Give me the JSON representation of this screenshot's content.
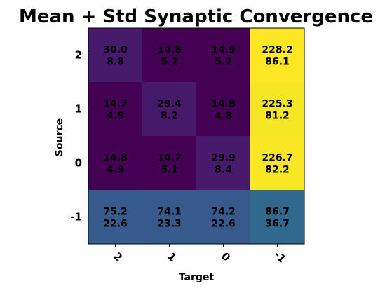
{
  "chart_data": {
    "type": "heatmap",
    "title": "Mean + Std Synaptic Convergence",
    "xlabel": "Target",
    "ylabel": "Source",
    "x_categories": [
      "2",
      "1",
      "0",
      "-1"
    ],
    "y_categories": [
      "2",
      "1",
      "0",
      "-1"
    ],
    "colormap": "viridis",
    "grid": false,
    "legend": "none",
    "cells": [
      {
        "source": "2",
        "target": "2",
        "mean": "30.0",
        "std": "8.8",
        "value": 30.0
      },
      {
        "source": "2",
        "target": "1",
        "mean": "14.8",
        "std": "5.2",
        "value": 14.8
      },
      {
        "source": "2",
        "target": "0",
        "mean": "14.9",
        "std": "5.2",
        "value": 14.9
      },
      {
        "source": "2",
        "target": "-1",
        "mean": "228.2",
        "std": "86.1",
        "value": 228.2
      },
      {
        "source": "1",
        "target": "2",
        "mean": "14.7",
        "std": "4.9",
        "value": 14.7
      },
      {
        "source": "1",
        "target": "1",
        "mean": "29.4",
        "std": "8.2",
        "value": 29.4
      },
      {
        "source": "1",
        "target": "0",
        "mean": "14.8",
        "std": "4.8",
        "value": 14.8
      },
      {
        "source": "1",
        "target": "-1",
        "mean": "225.3",
        "std": "81.2",
        "value": 225.3
      },
      {
        "source": "0",
        "target": "2",
        "mean": "14.8",
        "std": "4.9",
        "value": 14.8
      },
      {
        "source": "0",
        "target": "1",
        "mean": "14.7",
        "std": "5.1",
        "value": 14.7
      },
      {
        "source": "0",
        "target": "0",
        "mean": "29.9",
        "std": "8.4",
        "value": 29.9
      },
      {
        "source": "0",
        "target": "-1",
        "mean": "226.7",
        "std": "82.2",
        "value": 226.7
      },
      {
        "source": "-1",
        "target": "2",
        "mean": "75.2",
        "std": "22.6",
        "value": 75.2
      },
      {
        "source": "-1",
        "target": "1",
        "mean": "74.1",
        "std": "23.3",
        "value": 74.1
      },
      {
        "source": "-1",
        "target": "0",
        "mean": "74.2",
        "std": "22.6",
        "value": 74.2
      },
      {
        "source": "-1",
        "target": "-1",
        "mean": "86.7",
        "std": "36.7",
        "value": 86.7
      }
    ]
  }
}
